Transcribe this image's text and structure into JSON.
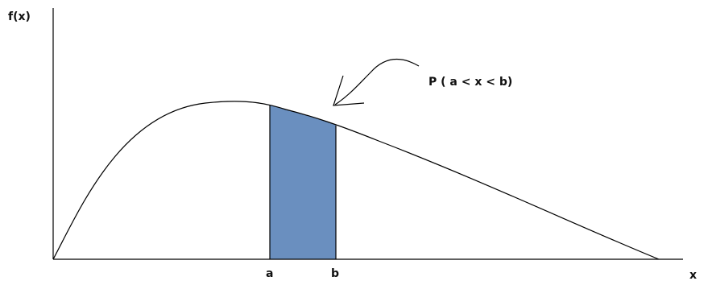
{
  "diagram": {
    "y_axis_label": "f(x)",
    "x_axis_label": "x",
    "point_a_label": "a",
    "point_b_label": "b",
    "annotation": "P ( a < x < b)",
    "colors": {
      "shaded_region": "#6a8fbf",
      "curve": "#000000",
      "axes": "#000000"
    }
  }
}
